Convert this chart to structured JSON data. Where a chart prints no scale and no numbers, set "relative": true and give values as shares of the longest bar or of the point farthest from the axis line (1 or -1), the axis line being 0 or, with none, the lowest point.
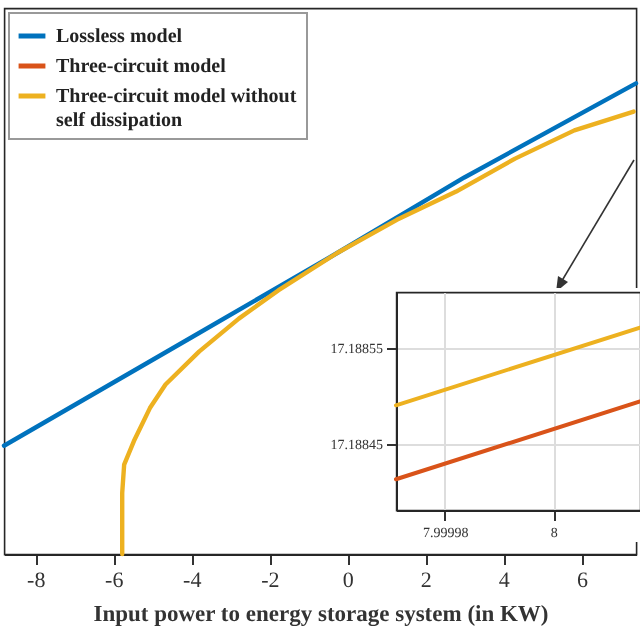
{
  "chart_data": [
    {
      "type": "line",
      "xlabel": "Input power to energy storage system (in KW)",
      "relative": true,
      "xlim": [
        -8.8,
        7.4
      ],
      "xticks": [
        -8,
        -6,
        -4,
        -2,
        0,
        2,
        4,
        6
      ],
      "grid": false,
      "legend": "top left",
      "series": [
        {
          "name": "Lossless model",
          "color": "#0072bd",
          "x": [
            -8.8,
            -4,
            -0.25,
            3,
            7.4
          ],
          "values": [
            0.23,
            0.46,
            0.64,
            0.8,
            1.0
          ]
        },
        {
          "name": "Three-circuit model",
          "color": "#d95319"
        },
        {
          "name": "Three-circuit model without self dissipation",
          "color": "#edb120",
          "x": [
            -5.77,
            -5.77,
            -5.72,
            -5.47,
            -5.06,
            -4.66,
            -3.8,
            -2.78,
            -1.77,
            -0.25,
            1.27,
            2.79,
            4.3,
            5.82,
            7.34
          ],
          "values": [
            0,
            0.13,
            0.19,
            0.24,
            0.31,
            0.36,
            0.43,
            0.5,
            0.56,
            0.64,
            0.71,
            0.77,
            0.84,
            0.9,
            0.94
          ]
        }
      ]
    },
    {
      "type": "line",
      "xlim": [
        7.999971,
        8.000016
      ],
      "ylim": [
        17.188381,
        17.188608
      ],
      "xticks": [
        7.99998,
        8
      ],
      "yticks": [
        17.18845,
        17.18855
      ],
      "grid": true,
      "series": [
        {
          "color": "#d95319",
          "x": [
            7.999971,
            8.000016
          ],
          "values": [
            17.188413,
            17.188494
          ]
        },
        {
          "color": "#edb120",
          "x": [
            7.999971,
            8.000016
          ],
          "values": [
            17.18849,
            17.188571
          ]
        }
      ]
    }
  ]
}
